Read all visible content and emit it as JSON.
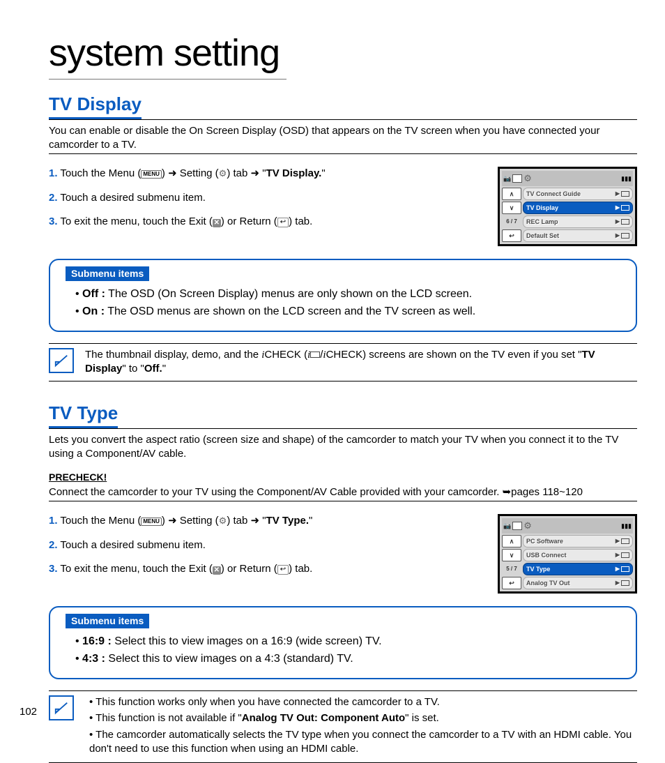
{
  "page": {
    "title": "system setting",
    "number": "102"
  },
  "colors": {
    "accent": "#0a5cc0",
    "text": "#000000",
    "bg": "#ffffff",
    "lcd_bg": "#d5d5d5"
  },
  "icons": {
    "menu": "MENU",
    "gear": "⚙",
    "x": "✕",
    "return": "↩",
    "arrow": "➜"
  },
  "tvDisplay": {
    "heading": "TV Display",
    "intro": "You can enable or disable the On Screen Display (OSD) that appears on the TV screen when you have connected your camcorder to a TV.",
    "steps": {
      "s1_a": "Touch the Menu (",
      "s1_b": ") ",
      "s1_c": " Setting (",
      "s1_d": ") tab ",
      "s1_e": " \"",
      "s1_bold": "TV Display.",
      "s1_f": "\"",
      "s2": "Touch a desired submenu item.",
      "s3_a": "To exit the menu, touch the Exit (",
      "s3_b": ") or Return (",
      "s3_c": ") tab."
    },
    "lcd": {
      "page": "6 / 7",
      "items": [
        {
          "label": "TV Connect Guide",
          "selected": false
        },
        {
          "label": "TV Display",
          "selected": true
        },
        {
          "label": "REC Lamp",
          "selected": false
        },
        {
          "label": "Default Set",
          "selected": false
        }
      ]
    },
    "submenu": {
      "label": "Submenu items",
      "off_b": "Off :",
      "off": " The OSD (On Screen Display) menus are only shown on the LCD screen.",
      "on_b": "On :",
      "on": " The OSD menus are shown on the LCD screen and the TV screen as well."
    },
    "note_a": "The thumbnail display, demo, and the ",
    "note_i1": "i",
    "note_b": "CHECK (",
    "note_i2": "i",
    "note_c": "/",
    "note_i3": "i",
    "note_d": "CHECK) screens are shown on the TV even if you set \"",
    "note_bold1": "TV Display",
    "note_e": "\" to \"",
    "note_bold2": "Off.",
    "note_f": "\""
  },
  "tvType": {
    "heading": "TV Type",
    "intro": "Lets you convert the aspect ratio (screen size and shape) of the camcorder to match your TV when you connect it to the TV using a Component/AV cable.",
    "precheck_label": "PRECHECK!",
    "precheck": "Connect the camcorder to your TV using the Component/AV Cable provided with your camcorder. ➥pages 118~120",
    "steps": {
      "s1_a": "Touch the Menu (",
      "s1_b": ") ",
      "s1_c": " Setting (",
      "s1_d": ") tab ",
      "s1_e": " \"",
      "s1_bold": "TV Type.",
      "s1_f": "\"",
      "s2": "Touch a desired submenu item.",
      "s3_a": "To exit the menu, touch the Exit (",
      "s3_b": ") or Return (",
      "s3_c": ") tab."
    },
    "lcd": {
      "page": "5 / 7",
      "items": [
        {
          "label": "PC Software",
          "selected": false
        },
        {
          "label": "USB Connect",
          "selected": false
        },
        {
          "label": "TV Type",
          "selected": true
        },
        {
          "label": "Analog TV Out",
          "selected": false
        }
      ]
    },
    "submenu": {
      "label": "Submenu items",
      "a_b": "16:9 :",
      "a": " Select this to view images on a 16:9 (wide screen) TV.",
      "b_b": "4:3 :",
      "b": " Select this to view images on a 4:3 (standard) TV."
    },
    "notes": {
      "n1": "This function works only when you have connected the camcorder to a TV.",
      "n2_a": "This function is not available if \"",
      "n2_b": "Analog TV Out: Component Auto",
      "n2_c": "\" is set.",
      "n3": "The camcorder automatically selects the TV type when you connect the camcorder to a TV with an HDMI cable. You don't need to use this function when using an HDMI cable."
    }
  }
}
